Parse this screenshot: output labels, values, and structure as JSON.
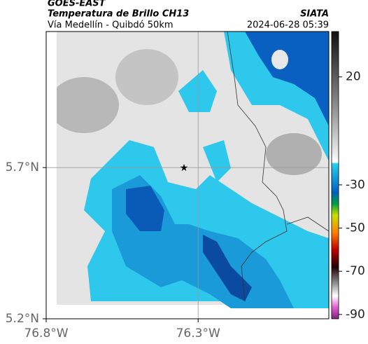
{
  "header": {
    "source": "GOES-EAST",
    "title": "Temperatura de Brillo CH13",
    "subtitle": "Vía Medellín - Quibdó 50km",
    "brand": "SIATA",
    "timestamp": "2024-06-28 05:39"
  },
  "map": {
    "latlim": [
      5.2,
      6.15
    ],
    "lonlim": [
      -76.8,
      -75.87
    ],
    "lat_ticks": [
      {
        "value": 5.2,
        "label": "5.2°N"
      },
      {
        "value": 5.7,
        "label": "5.7°N"
      }
    ],
    "lon_ticks": [
      {
        "value": -76.8,
        "label": "76.8°W"
      },
      {
        "value": -76.3,
        "label": "76.3°W"
      }
    ],
    "colorbar": {
      "lim": [
        -92,
        41
      ],
      "ticks": [
        20,
        -30,
        -50,
        -70,
        -90
      ]
    }
  }
}
